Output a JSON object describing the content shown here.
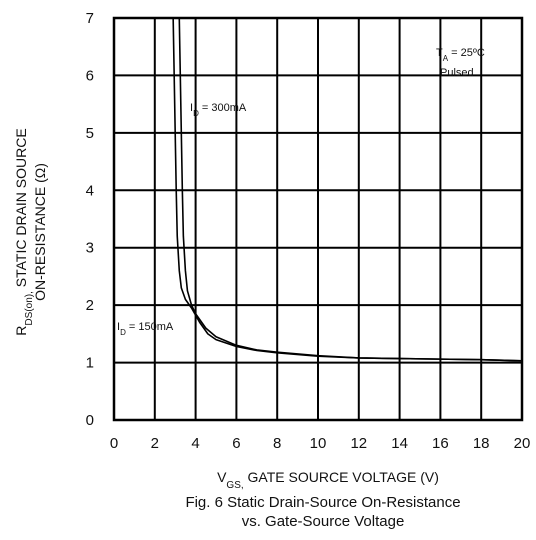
{
  "chart_data": {
    "type": "line",
    "xlim": [
      0,
      20
    ],
    "ylim": [
      0,
      7
    ],
    "x_ticks": [
      "0",
      "2",
      "4",
      "6",
      "8",
      "10",
      "12",
      "14",
      "16",
      "18",
      "20"
    ],
    "y_ticks": [
      "0",
      "1",
      "2",
      "3",
      "4",
      "5",
      "6",
      "7"
    ],
    "grid": true,
    "xlabel": {
      "main": "V",
      "sub": "GS,",
      "rest": " GATE SOURCE VOLTAGE (V)"
    },
    "ylabel": {
      "main": "R",
      "sub": "DS(on),",
      "rest": " STATIC DRAIN SOURCE",
      "line2": "ON-RESISTANCE (Ω)"
    },
    "caption": [
      "Fig. 6  Static Drain-Source On-Resistance",
      "vs. Gate-Source Voltage"
    ],
    "condition": {
      "prefix": "T",
      "sub": "A",
      "rest": " = 25ºC",
      "line2": "Pulsed"
    },
    "series": [
      {
        "name": "I_D = 300mA",
        "label": {
          "prefix": "I",
          "sub": "D",
          "rest": " = 300mA"
        },
        "x": [
          3.2,
          3.25,
          3.3,
          3.35,
          3.4,
          3.5,
          3.6,
          3.8,
          4.0,
          4.5,
          5.0,
          6.0,
          7.0,
          8.0,
          10.0,
          12.0,
          14.0,
          16.0,
          18.0,
          20.0
        ],
        "y": [
          7.0,
          6.0,
          5.0,
          4.0,
          3.2,
          2.6,
          2.25,
          2.0,
          1.85,
          1.6,
          1.45,
          1.3,
          1.22,
          1.18,
          1.12,
          1.08,
          1.07,
          1.06,
          1.05,
          1.03
        ]
      },
      {
        "name": "I_D = 150mA",
        "label": {
          "prefix": "I",
          "sub": "D",
          "rest": " = 150mA"
        },
        "x": [
          2.9,
          2.95,
          3.0,
          3.05,
          3.1,
          3.2,
          3.3,
          3.5,
          3.8,
          4.2,
          4.6,
          5.0,
          6.0,
          7.0,
          8.0,
          10.0,
          12.0,
          14.0,
          16.0,
          18.0,
          20.0
        ],
        "y": [
          7.0,
          6.0,
          5.0,
          4.0,
          3.2,
          2.6,
          2.3,
          2.1,
          1.95,
          1.7,
          1.5,
          1.4,
          1.28,
          1.21,
          1.17,
          1.11,
          1.08,
          1.07,
          1.06,
          1.05,
          1.03
        ]
      }
    ]
  }
}
